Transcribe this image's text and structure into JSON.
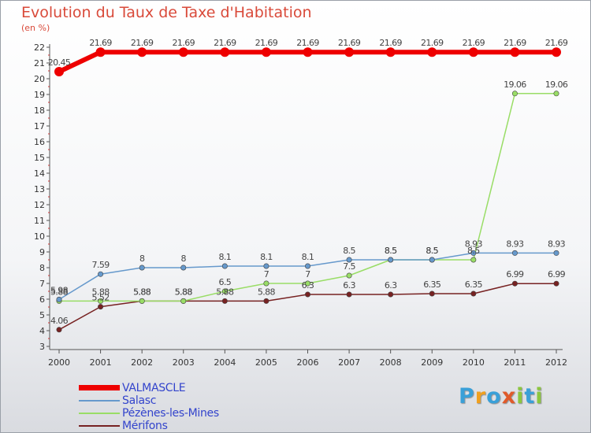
{
  "title": "Evolution du Taux de Taxe d'Habitation",
  "unit": "(en %)",
  "logo": {
    "letters": [
      {
        "ch": "P",
        "color": "#3aa0d8"
      },
      {
        "ch": "r",
        "color": "#f0a020"
      },
      {
        "ch": "o",
        "color": "#3aa0d8"
      },
      {
        "ch": "x",
        "color": "#e05a2a"
      },
      {
        "ch": "i",
        "color": "#8cc63f"
      },
      {
        "ch": "t",
        "color": "#3aa0d8"
      },
      {
        "ch": "i",
        "color": "#8cc63f"
      }
    ]
  },
  "chart_data": {
    "type": "line",
    "title": "Evolution du Taux de Taxe d'Habitation",
    "ylabel": "(en %)",
    "xlabel": "",
    "x": [
      2000,
      2001,
      2002,
      2003,
      2004,
      2005,
      2006,
      2007,
      2008,
      2009,
      2010,
      2011,
      2012
    ],
    "x_tick_labels": [
      "2000",
      "2001",
      "2002",
      "2003",
      "2004",
      "2005",
      "2006",
      "2007",
      "2008",
      "2009",
      "2010",
      "2011",
      "2012"
    ],
    "ylim": [
      3,
      22
    ],
    "y_ticks": [
      3,
      4,
      5,
      6,
      7,
      8,
      9,
      10,
      11,
      12,
      13,
      14,
      15,
      16,
      17,
      18,
      19,
      20,
      21,
      22
    ],
    "grid": false,
    "legend_position": "bottom-left",
    "series": [
      {
        "name": "VALMASCLE",
        "color": "#ee0000",
        "width": 6,
        "values": [
          20.45,
          21.69,
          21.69,
          21.69,
          21.69,
          21.69,
          21.69,
          21.69,
          21.69,
          21.69,
          21.69,
          21.69,
          21.69
        ],
        "labels": [
          "20.45",
          "21.69",
          "21.69",
          "21.69",
          "21.69",
          "21.69",
          "21.69",
          "21.69",
          "21.69",
          "21.69",
          "21.69",
          "21.69",
          "21.69"
        ]
      },
      {
        "name": "Salasc",
        "color": "#6699cc",
        "width": 1.5,
        "values": [
          5.98,
          7.59,
          8,
          8,
          8.1,
          8.1,
          8.1,
          8.5,
          8.5,
          8.5,
          8.93,
          8.93,
          8.93
        ],
        "labels": [
          "5.98",
          "7.59",
          "8",
          "8",
          "8.1",
          "8.1",
          "8.1",
          "8.5",
          "8.5",
          "8.5",
          "8.93",
          "8.93",
          "8.93"
        ]
      },
      {
        "name": "Pézènes-les-Mines",
        "color": "#99dd66",
        "width": 1.5,
        "values": [
          5.88,
          5.88,
          5.88,
          5.88,
          6.5,
          7,
          7,
          7.5,
          8.5,
          8.5,
          8.5,
          19.06,
          19.06
        ],
        "labels": [
          "5.88",
          "5.88",
          "5.88",
          "5.88",
          "6.5",
          "7",
          "7",
          "7.5",
          "8.5",
          "8.5",
          "8.5",
          "19.06",
          "19.06"
        ]
      },
      {
        "name": "Mérifons",
        "color": "#772222",
        "width": 1.5,
        "values": [
          4.06,
          5.52,
          5.88,
          5.88,
          5.88,
          5.88,
          6.3,
          6.3,
          6.3,
          6.35,
          6.35,
          6.99,
          6.99
        ],
        "labels": [
          "4.06",
          "5.52",
          "5.88",
          "5.88",
          "5.88",
          "5.88",
          "6.3",
          "6.3",
          "6.3",
          "6.35",
          "6.35",
          "6.99",
          "6.99"
        ]
      }
    ]
  }
}
